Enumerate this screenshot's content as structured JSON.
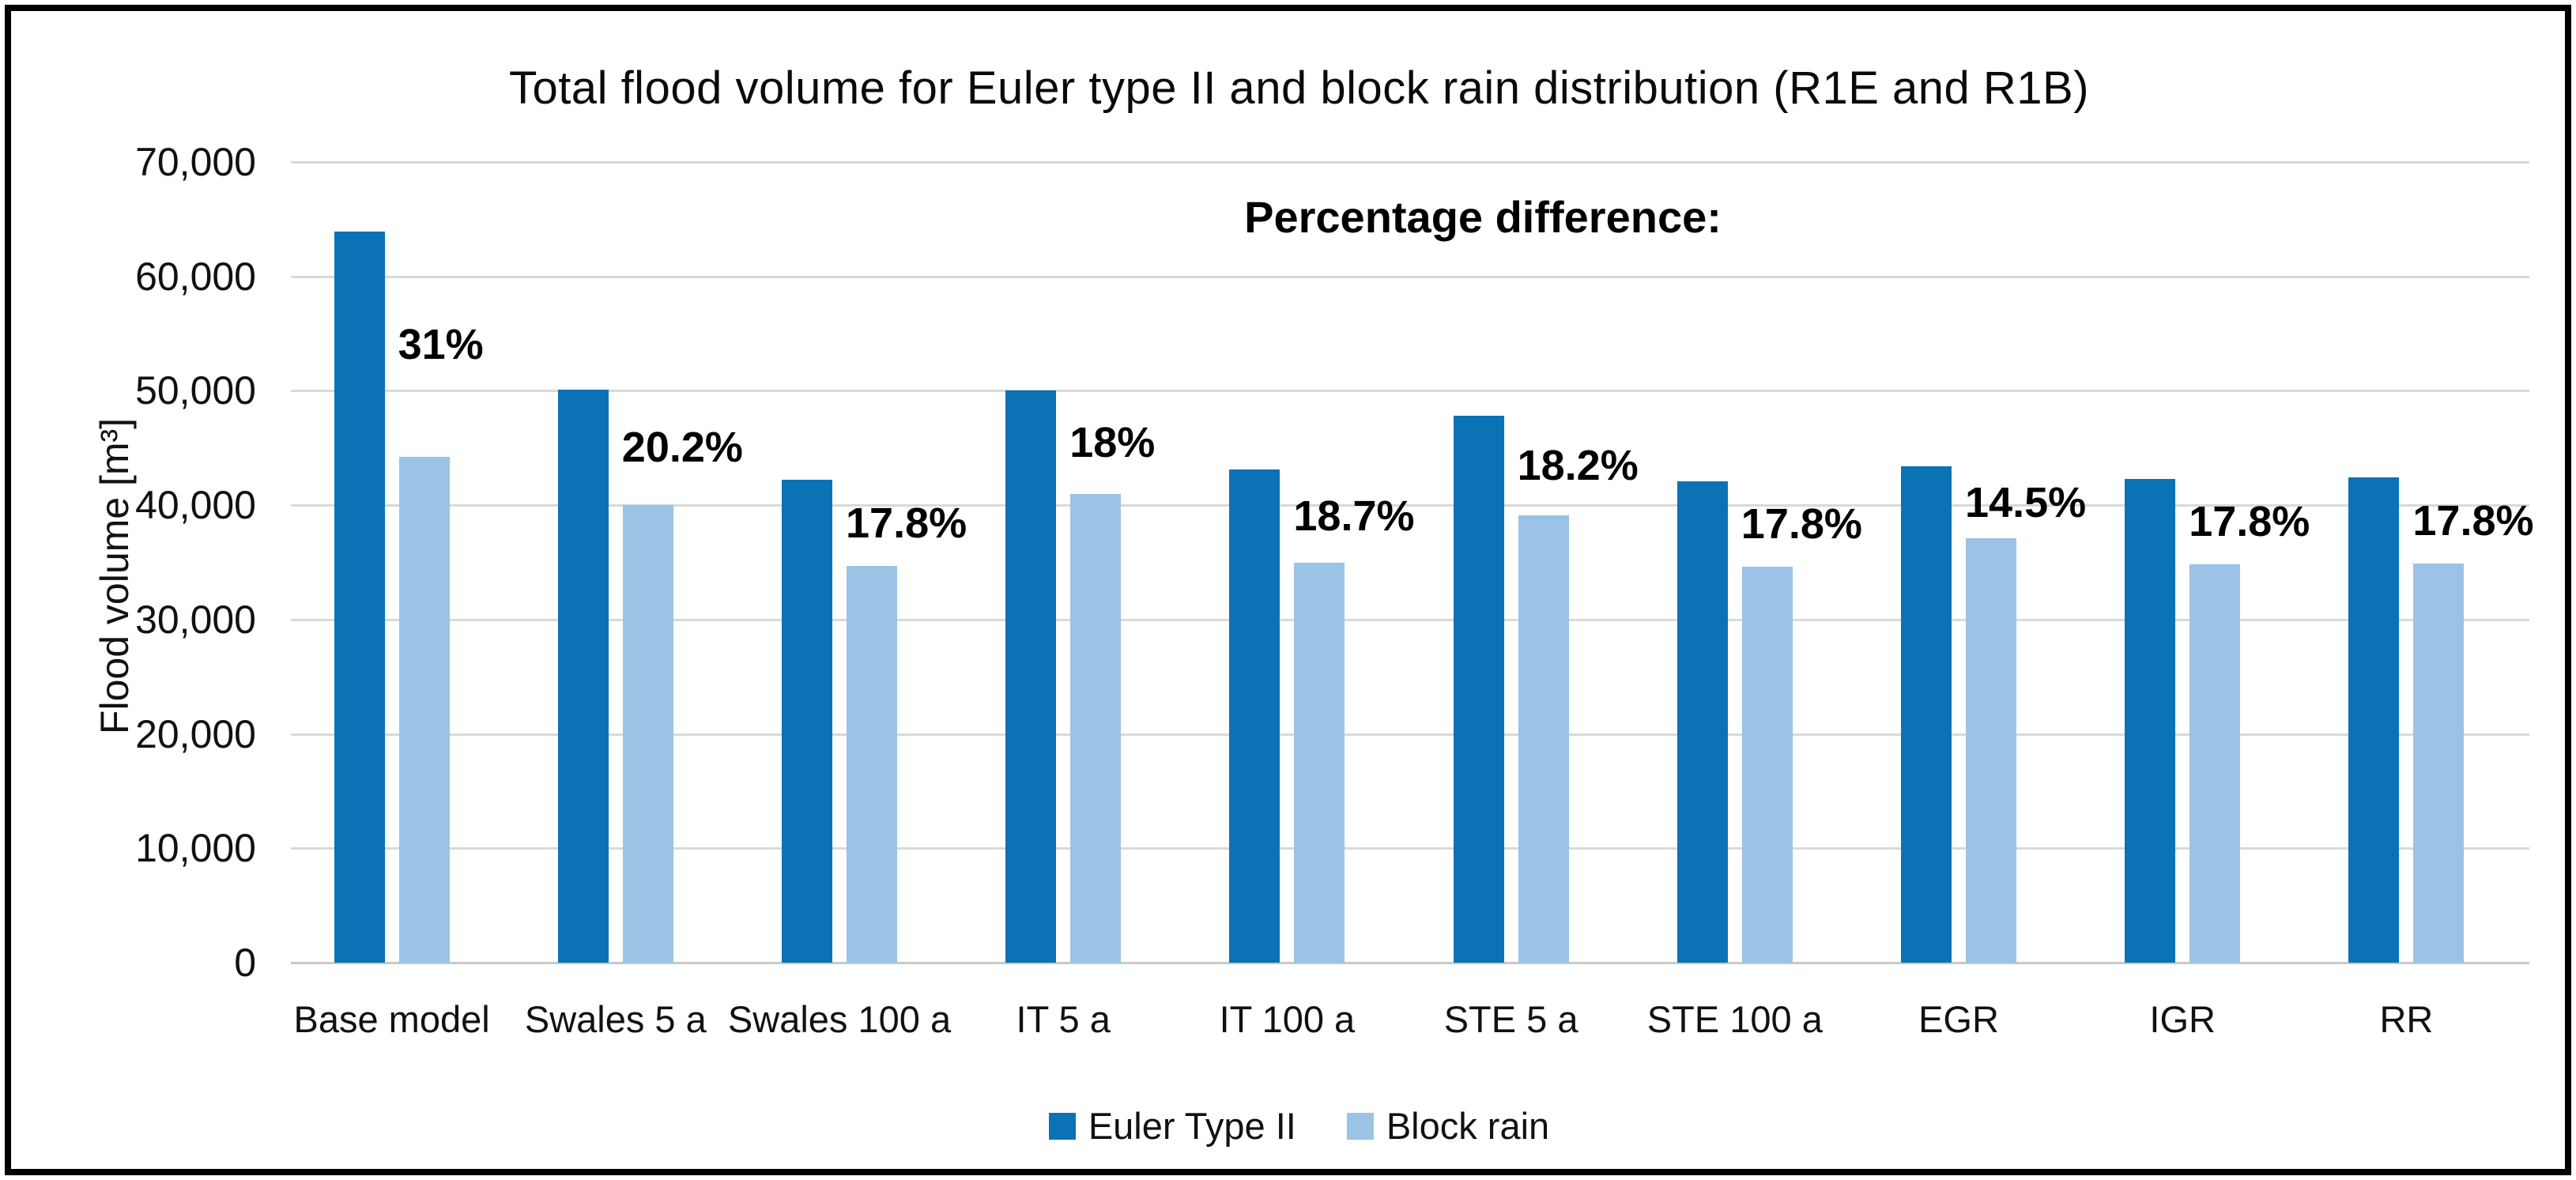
{
  "chart_data": {
    "type": "bar",
    "title": "Total flood volume for Euler type II and block rain distribution (R1E and R1B)",
    "annotation_heading": "Percentage difference:",
    "ylabel": "Flood volume [m³]",
    "xlabel": "",
    "ylim": [
      0,
      70000
    ],
    "ytick_step": 10000,
    "ytick_labels": [
      "0",
      "10,000",
      "20,000",
      "30,000",
      "40,000",
      "50,000",
      "60,000",
      "70,000"
    ],
    "grid": "horizontal",
    "legend_position": "bottom-center",
    "categories": [
      "Base model",
      "Swales 5 a",
      "Swales 100 a",
      "IT 5 a",
      "IT 100 a",
      "STE 5 a",
      "STE 100 a",
      "EGR",
      "IGR",
      "RR"
    ],
    "series": [
      {
        "name": "Euler Type II",
        "color": "#0B72B6",
        "values": [
          63900,
          50100,
          42200,
          50000,
          43100,
          47800,
          42100,
          43400,
          42300,
          42400
        ]
      },
      {
        "name": "Block rain",
        "color": "#9AC3E6",
        "values": [
          44200,
          40000,
          34700,
          41000,
          35000,
          39100,
          34600,
          37100,
          34800,
          34900
        ]
      }
    ],
    "percent_diff_labels": [
      "31%",
      "20.2%",
      "17.8%",
      "18%",
      "18.7%",
      "18.2%",
      "17.8%",
      "14.5%",
      "17.8%",
      "17.8%"
    ],
    "colors": {
      "gridline": "#d9d9d9",
      "axis_text": "#111111",
      "label_text": "#000000"
    }
  }
}
